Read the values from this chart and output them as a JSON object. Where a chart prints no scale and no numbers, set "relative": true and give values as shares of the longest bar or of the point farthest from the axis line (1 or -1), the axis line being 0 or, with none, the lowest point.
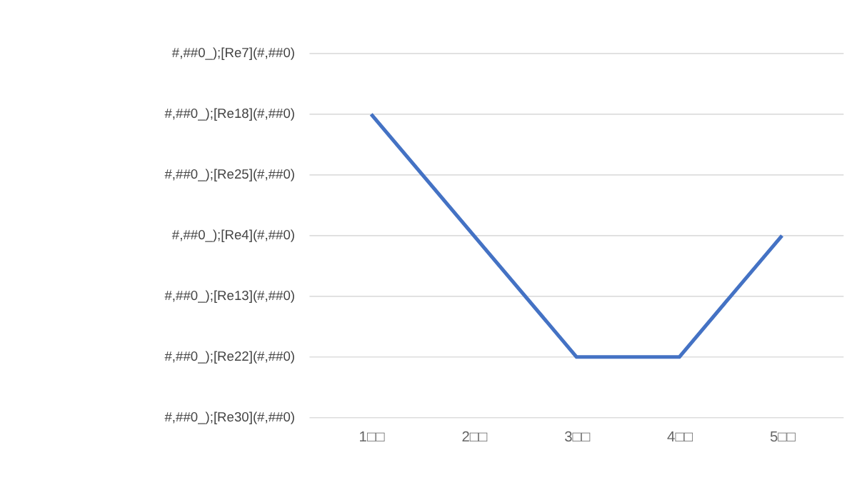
{
  "chart_data": {
    "type": "line",
    "categories": [
      "1□□",
      "2□□",
      "3□□",
      "4□□",
      "5□□"
    ],
    "series": [
      {
        "color": "#4472c4",
        "values": [
          1,
          0.6,
          0.2,
          0.2,
          0.6
        ]
      }
    ],
    "relative": true,
    "annotations": [
      "#,##0_);[Re30](#,##0)",
      "#,##0_);[Re22](#,##0)",
      "#,##0_);[Re13](#,##0)",
      "#,##0_);[Re4](#,##0)",
      "#,##0_);[Re25](#,##0)",
      "#,##0_);[Re18](#,##0)",
      "#,##0_);[Re7](#,##0)"
    ],
    "grid": "y",
    "marker": "none",
    "line_style": "solid"
  }
}
